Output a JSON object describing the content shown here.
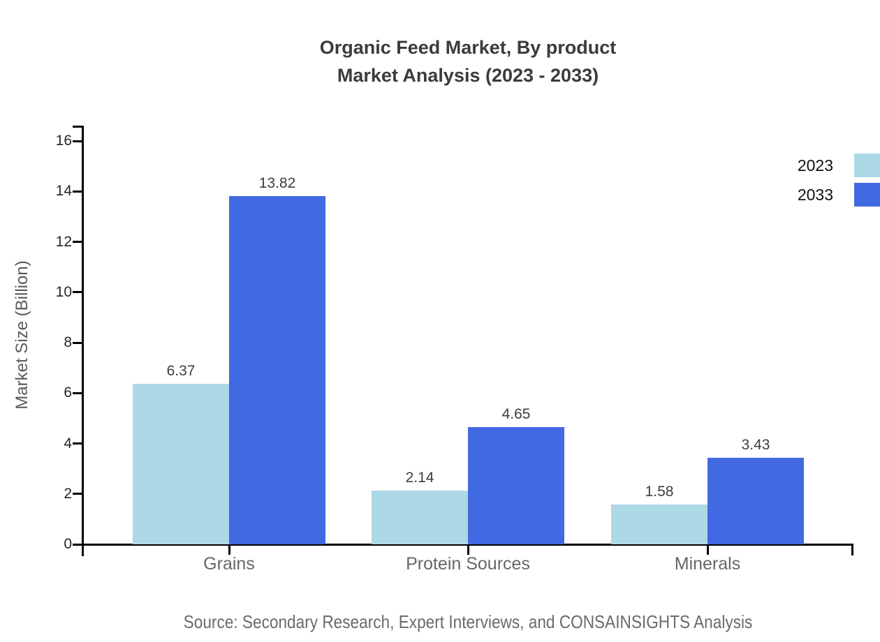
{
  "title": {
    "line1": "Organic Feed Market, By product",
    "line2": "Market Analysis (2023 - 2033)"
  },
  "source_note": "Source: Secondary Research, Expert Interviews, and CONSAINSIGHTS Analysis",
  "chart_data": {
    "type": "bar",
    "title": "Organic Feed Market, By product Market Analysis (2023 - 2033)",
    "categories": [
      "Grains",
      "Protein Sources",
      "Minerals"
    ],
    "series": [
      {
        "name": "2023",
        "color": "#ADD8E6",
        "values": [
          6.37,
          2.14,
          1.58
        ]
      },
      {
        "name": "2033",
        "color": "#4169E1",
        "values": [
          13.82,
          4.65,
          3.43
        ]
      }
    ],
    "xlabel": "",
    "ylabel": "Market Size (Billion)",
    "ylim": [
      0,
      16
    ],
    "yticks": [
      0,
      2,
      4,
      6,
      8,
      10,
      12,
      14,
      16
    ],
    "value_label_decimals": 2,
    "grid": false,
    "legend_position": "top-right",
    "background": "#ffffff"
  }
}
